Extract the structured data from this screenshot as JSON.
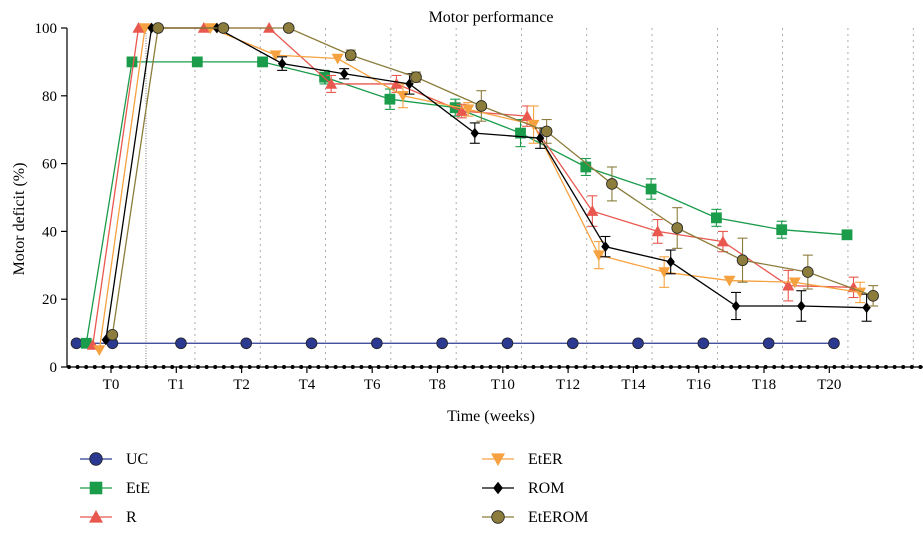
{
  "chart_data": {
    "type": "line",
    "title": "Motor performance",
    "xlabel": "Time (weeks)",
    "ylabel": "Motor deficit (%)",
    "ylim": [
      0,
      100
    ],
    "y_ticks": [
      0,
      20,
      40,
      60,
      80,
      100
    ],
    "x_tick_labels": [
      "T0",
      "T1",
      "T2",
      "T4",
      "T6",
      "T8",
      "T10",
      "T12",
      "T14",
      "T16",
      "T18",
      "T20"
    ],
    "grid": "vertical dotted",
    "legend_position": "bottom",
    "series": [
      {
        "name": "UC",
        "color": "#2b3990",
        "marker": "circle",
        "x": [
          -0.1,
          0.45,
          1.5,
          2.5,
          3.5,
          4.5,
          5.5,
          6.5,
          7.5,
          8.5,
          9.5,
          10.5,
          11.5
        ],
        "y": [
          7,
          7,
          7,
          7,
          7,
          7,
          7,
          7,
          7,
          7,
          7,
          7,
          7
        ],
        "err": [
          0,
          0,
          0,
          0,
          0,
          0,
          0,
          0,
          0,
          0,
          0,
          0,
          0
        ]
      },
      {
        "name": "EtE",
        "color": "#1a9c4b",
        "marker": "square",
        "x": [
          0.05,
          0.75,
          1.75,
          2.75,
          3.7,
          4.7,
          5.7,
          6.7,
          7.7,
          8.7,
          9.7,
          10.7,
          11.7
        ],
        "y": [
          7,
          90,
          90,
          90,
          85.5,
          79,
          76.5,
          69,
          59,
          52.5,
          44,
          40.5,
          39
        ],
        "err": [
          0,
          0,
          0,
          0,
          2,
          3,
          2.5,
          4,
          2.5,
          3,
          2.5,
          2.5,
          0
        ]
      },
      {
        "name": "R",
        "color": "#e8584e",
        "marker": "triangle-up",
        "x": [
          0.15,
          0.85,
          1.85,
          2.85,
          3.8,
          4.8,
          5.8,
          6.8,
          7.8,
          8.8,
          9.8,
          10.8,
          11.8
        ],
        "y": [
          6.5,
          100,
          100,
          100,
          83.5,
          83.5,
          75.5,
          74,
          46,
          40,
          37,
          24,
          23.5
        ],
        "err": [
          0,
          0,
          0,
          0,
          2.5,
          2.5,
          2,
          3,
          4.5,
          3.5,
          3,
          4.5,
          3
        ]
      },
      {
        "name": "EtER",
        "color": "#f6a240",
        "marker": "triangle-down",
        "x": [
          0.25,
          0.95,
          1.95,
          2.95,
          3.9,
          4.9,
          5.9,
          6.9,
          7.9,
          8.9,
          9.9,
          10.9,
          11.9
        ],
        "y": [
          5,
          100,
          100,
          92,
          91,
          80,
          76,
          71.5,
          33,
          28,
          25.5,
          25,
          22
        ],
        "err": [
          0,
          0,
          0,
          0,
          0,
          3.5,
          2,
          5.5,
          4,
          4.5,
          0,
          0,
          3
        ]
      },
      {
        "name": "ROM",
        "color": "#000000",
        "marker": "diamond",
        "x": [
          0.35,
          1.05,
          2.05,
          3.05,
          4.0,
          5.0,
          6.0,
          7.0,
          8.0,
          9.0,
          10.0,
          11.0,
          12.0
        ],
        "y": [
          8,
          100,
          100,
          89.5,
          86.5,
          83.5,
          69,
          67.5,
          35.5,
          31,
          18,
          18,
          17.5
        ],
        "err": [
          0,
          0,
          0,
          2,
          1.5,
          3,
          3,
          3,
          3,
          3.5,
          4,
          4.5,
          4
        ]
      },
      {
        "name": "EtEROM",
        "color": "#8c7d3c",
        "marker": "circle",
        "x": [
          0.45,
          1.15,
          2.15,
          3.15,
          4.1,
          5.1,
          6.1,
          7.1,
          8.1,
          9.1,
          10.1,
          11.1,
          12.1
        ],
        "y": [
          9.5,
          100,
          100,
          100,
          92,
          85.5,
          77,
          69.5,
          54,
          41,
          31.5,
          28,
          21
        ],
        "err": [
          0,
          0,
          0,
          0,
          1.5,
          1.5,
          4.5,
          3.5,
          5,
          6,
          6.5,
          5,
          3
        ]
      }
    ]
  }
}
